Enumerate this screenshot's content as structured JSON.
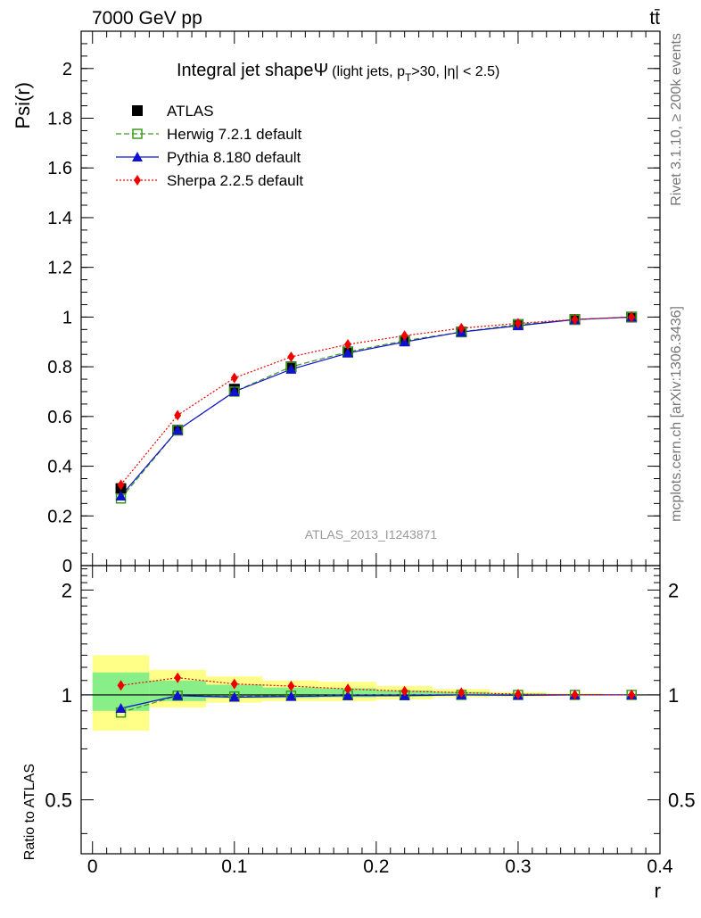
{
  "header": {
    "energy_label": "7000 GeV pp",
    "process_label": "tt̄"
  },
  "side_labels": {
    "rivet": "Rivet 3.1.10, ≥ 200k events",
    "mcplots": "mcplots.cern.ch [arXiv:1306.3436]"
  },
  "chart_data": [
    {
      "type": "line",
      "title": "Integral jet shape",
      "title_symbol": "Ψ",
      "subtitle_prefix": "(light jets, p",
      "subtitle_sub": "T",
      "subtitle_suffix": ">30, |η| < 2.5)",
      "watermark": "ATLAS_2013_I1243871",
      "ylabel": "Psi(r)",
      "xlabel": "r",
      "xlim": [
        -0.008,
        0.4
      ],
      "ylim": [
        0,
        2.15
      ],
      "yticks": [
        0,
        0.2,
        0.4,
        0.6,
        0.8,
        1,
        1.2,
        1.4,
        1.6,
        1.8,
        2
      ],
      "ytick_labels": [
        "0",
        "0.2",
        "0.4",
        "0.6",
        "0.8",
        "1",
        "1.2",
        "1.4",
        "1.6",
        "1.8",
        "2"
      ],
      "legend_position": "top-left",
      "x": [
        0.02,
        0.06,
        0.1,
        0.14,
        0.18,
        0.22,
        0.26,
        0.3,
        0.34,
        0.38
      ],
      "series": [
        {
          "name": "ATLAS",
          "color": "#000000",
          "marker": "square-filled",
          "line": "none",
          "values": [
            0.31,
            0.545,
            0.71,
            0.8,
            0.86,
            0.905,
            0.94,
            0.97,
            0.99,
            1.0
          ]
        },
        {
          "name": "Herwig 7.2.1 default",
          "color": "#3a9a1a",
          "marker": "square-open",
          "line": "dashed",
          "values": [
            0.27,
            0.545,
            0.7,
            0.8,
            0.86,
            0.905,
            0.94,
            0.97,
            0.99,
            1.0
          ]
        },
        {
          "name": "Pythia 8.180 default",
          "color": "#1010d0",
          "marker": "triangle",
          "line": "solid",
          "values": [
            0.28,
            0.545,
            0.7,
            0.79,
            0.855,
            0.9,
            0.94,
            0.965,
            0.99,
            1.0
          ]
        },
        {
          "name": "Sherpa 2.2.5 default",
          "color": "#ee0000",
          "marker": "diamond",
          "line": "dotted",
          "values": [
            0.325,
            0.605,
            0.755,
            0.84,
            0.89,
            0.925,
            0.955,
            0.975,
            0.99,
            1.0
          ]
        }
      ]
    },
    {
      "type": "line",
      "ylabel": "Ratio to ATLAS",
      "xlabel": "r",
      "xlim": [
        -0.008,
        0.4
      ],
      "ylim": [
        0.35,
        2.35
      ],
      "ylog": true,
      "yticks": [
        0.5,
        1,
        2
      ],
      "ytick_labels": [
        "0.5",
        "1",
        "2"
      ],
      "xticks": [
        0,
        0.1,
        0.2,
        0.3,
        0.4
      ],
      "xtick_labels": [
        "0",
        "0.1",
        "0.2",
        "0.3",
        "0.4"
      ],
      "reference": 1,
      "bands": {
        "bin_edges": [
          0.0,
          0.04,
          0.08,
          0.12,
          0.16,
          0.2,
          0.24,
          0.28,
          0.32,
          0.36,
          0.4
        ],
        "total": {
          "color": "#ffff88",
          "low": [
            0.79,
            0.92,
            0.95,
            0.96,
            0.96,
            0.97,
            0.985,
            0.99,
            0.995,
            0.999
          ],
          "high": [
            1.3,
            1.18,
            1.13,
            1.1,
            1.09,
            1.06,
            1.04,
            1.02,
            1.01,
            1.001
          ]
        },
        "stat": {
          "color": "#88ee88",
          "low": [
            0.9,
            0.96,
            0.98,
            0.98,
            0.985,
            0.99,
            0.995,
            0.997,
            0.998,
            0.9995
          ],
          "high": [
            1.16,
            1.1,
            1.07,
            1.05,
            1.045,
            1.03,
            1.02,
            1.01,
            1.005,
            1.0005
          ]
        }
      },
      "x": [
        0.02,
        0.06,
        0.1,
        0.14,
        0.18,
        0.22,
        0.26,
        0.3,
        0.34,
        0.38
      ],
      "series": [
        {
          "name": "Herwig 7.2.1 default",
          "color": "#3a9a1a",
          "marker": "square-open",
          "line": "dashed",
          "values": [
            0.89,
            0.995,
            0.99,
            0.995,
            0.998,
            0.998,
            1.0,
            1.0,
            1.0,
            1.0
          ]
        },
        {
          "name": "Pythia 8.180 default",
          "color": "#1010d0",
          "marker": "triangle",
          "line": "solid",
          "values": [
            0.915,
            0.995,
            0.985,
            0.99,
            0.995,
            0.995,
            1.0,
            0.997,
            1.0,
            1.0
          ]
        },
        {
          "name": "Sherpa 2.2.5 default",
          "color": "#ee0000",
          "marker": "diamond",
          "line": "dotted",
          "values": [
            1.065,
            1.12,
            1.075,
            1.06,
            1.04,
            1.025,
            1.015,
            1.005,
            1.0,
            1.0
          ]
        }
      ]
    }
  ]
}
